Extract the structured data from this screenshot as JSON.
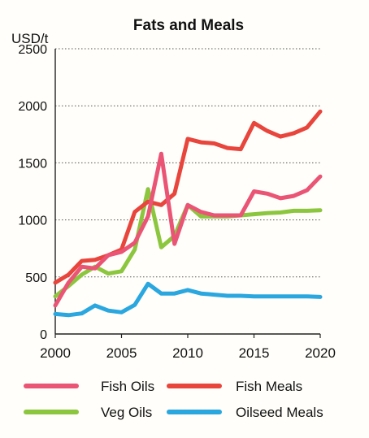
{
  "chart_data": {
    "type": "line",
    "title": "Fats and Meals",
    "ylabel": "USD/t",
    "xlabel": "",
    "xlim": [
      2000,
      2020
    ],
    "ylim": [
      0,
      2500
    ],
    "x_ticks": [
      "2000",
      "2005",
      "2010",
      "2015",
      "2020"
    ],
    "y_ticks": [
      "0",
      "500",
      "1000",
      "1500",
      "2000",
      "2500"
    ],
    "grid": "horizontal dotted",
    "legend_position": "bottom",
    "x": [
      2000,
      2001,
      2002,
      2003,
      2004,
      2005,
      2006,
      2007,
      2008,
      2009,
      2010,
      2011,
      2012,
      2013,
      2014,
      2015,
      2016,
      2017,
      2018,
      2019,
      2020
    ],
    "series": [
      {
        "name": "Fish Oils",
        "color": "#ea5475",
        "values": [
          250,
          450,
          590,
          575,
          690,
          720,
          800,
          1030,
          1580,
          790,
          1130,
          1070,
          1040,
          1040,
          1040,
          1250,
          1230,
          1190,
          1210,
          1260,
          1380
        ]
      },
      {
        "name": "Fish Meals",
        "color": "#e8453c",
        "values": [
          450,
          520,
          640,
          650,
          690,
          740,
          1070,
          1160,
          1130,
          1230,
          1710,
          1680,
          1670,
          1630,
          1620,
          1850,
          1780,
          1730,
          1760,
          1810,
          1950
        ]
      },
      {
        "name": "Veg Oils",
        "color": "#8cc63e",
        "values": [
          330,
          420,
          520,
          590,
          530,
          550,
          740,
          1270,
          760,
          860,
          1130,
          1030,
          1030,
          1030,
          1040,
          1050,
          1060,
          1065,
          1080,
          1080,
          1085
        ]
      },
      {
        "name": "Oilseed Meals",
        "color": "#2aa7df",
        "values": [
          175,
          165,
          180,
          250,
          205,
          190,
          255,
          440,
          355,
          355,
          385,
          355,
          345,
          335,
          335,
          330,
          330,
          330,
          330,
          330,
          325
        ]
      }
    ]
  }
}
